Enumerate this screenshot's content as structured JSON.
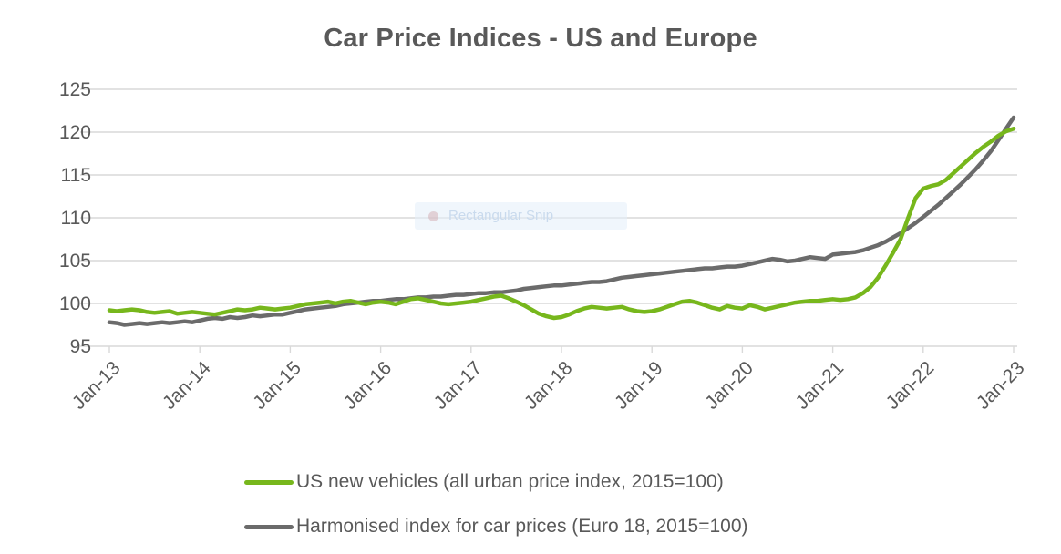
{
  "title": "Car Price Indices - US and Europe",
  "overlay": {
    "label": "Rectangular Snip"
  },
  "chart_data": {
    "type": "line",
    "title": "Car Price Indices - US and Europe",
    "x_tick_labels": [
      "Jan-13",
      "Jan-14",
      "Jan-15",
      "Jan-16",
      "Jan-17",
      "Jan-18",
      "Jan-19",
      "Jan-20",
      "Jan-21",
      "Jan-22",
      "Jan-23"
    ],
    "x_unit": "monthly points, Jan-2013 to Jan-2023",
    "ylim": [
      95,
      125
    ],
    "yticks": [
      95,
      100,
      105,
      110,
      115,
      120,
      125
    ],
    "grid_on": true,
    "grid_color": "#d9d9d9",
    "axis_label_color": "#595959",
    "legend_position": "bottom",
    "series": [
      {
        "id": "us-new-vehicles",
        "name": "US new vehicles (all urban price index, 2015=100)",
        "color": "#77b71c",
        "values": [
          99.2,
          99.1,
          99.2,
          99.3,
          99.2,
          99.0,
          98.9,
          99.0,
          99.1,
          98.8,
          98.9,
          99.0,
          98.9,
          98.8,
          98.7,
          98.9,
          99.1,
          99.3,
          99.2,
          99.3,
          99.5,
          99.4,
          99.3,
          99.4,
          99.5,
          99.7,
          99.9,
          100.0,
          100.1,
          100.2,
          100.0,
          100.2,
          100.3,
          100.1,
          99.9,
          100.1,
          100.2,
          100.1,
          99.9,
          100.2,
          100.5,
          100.6,
          100.4,
          100.2,
          100.0,
          99.9,
          100.0,
          100.1,
          100.2,
          100.4,
          100.6,
          100.8,
          100.9,
          100.6,
          100.2,
          99.8,
          99.3,
          98.8,
          98.5,
          98.3,
          98.4,
          98.7,
          99.1,
          99.4,
          99.6,
          99.5,
          99.4,
          99.5,
          99.6,
          99.3,
          99.1,
          99.0,
          99.1,
          99.3,
          99.6,
          99.9,
          100.2,
          100.3,
          100.1,
          99.8,
          99.5,
          99.3,
          99.7,
          99.5,
          99.4,
          99.8,
          99.6,
          99.3,
          99.5,
          99.7,
          99.9,
          100.1,
          100.2,
          100.3,
          100.3,
          100.4,
          100.5,
          100.4,
          100.5,
          100.7,
          101.2,
          101.9,
          103.0,
          104.4,
          105.9,
          107.5,
          110.0,
          112.3,
          113.4,
          113.7,
          113.9,
          114.4,
          115.2,
          116.0,
          116.8,
          117.6,
          118.3,
          118.9,
          119.6,
          120.1,
          120.4
        ]
      },
      {
        "id": "euro-harmonised",
        "name": "Harmonised index for car prices (Euro 18, 2015=100)",
        "color": "#6b6b6b",
        "values": [
          97.8,
          97.7,
          97.5,
          97.6,
          97.7,
          97.6,
          97.7,
          97.8,
          97.7,
          97.8,
          97.9,
          97.8,
          98.0,
          98.2,
          98.3,
          98.2,
          98.4,
          98.3,
          98.4,
          98.6,
          98.5,
          98.6,
          98.7,
          98.7,
          98.9,
          99.1,
          99.3,
          99.4,
          99.5,
          99.6,
          99.7,
          99.9,
          100.0,
          100.1,
          100.2,
          100.3,
          100.3,
          100.4,
          100.5,
          100.5,
          100.6,
          100.7,
          100.7,
          100.8,
          100.8,
          100.9,
          101.0,
          101.0,
          101.1,
          101.2,
          101.2,
          101.3,
          101.3,
          101.4,
          101.5,
          101.7,
          101.8,
          101.9,
          102.0,
          102.1,
          102.1,
          102.2,
          102.3,
          102.4,
          102.5,
          102.5,
          102.6,
          102.8,
          103.0,
          103.1,
          103.2,
          103.3,
          103.4,
          103.5,
          103.6,
          103.7,
          103.8,
          103.9,
          104.0,
          104.1,
          104.1,
          104.2,
          104.3,
          104.3,
          104.4,
          104.6,
          104.8,
          105.0,
          105.2,
          105.1,
          104.9,
          105.0,
          105.2,
          105.4,
          105.3,
          105.2,
          105.7,
          105.8,
          105.9,
          106.0,
          106.2,
          106.5,
          106.8,
          107.2,
          107.7,
          108.2,
          108.8,
          109.4,
          110.1,
          110.8,
          111.5,
          112.3,
          113.1,
          113.9,
          114.8,
          115.7,
          116.7,
          117.8,
          119.1,
          120.4,
          121.7
        ]
      }
    ]
  }
}
